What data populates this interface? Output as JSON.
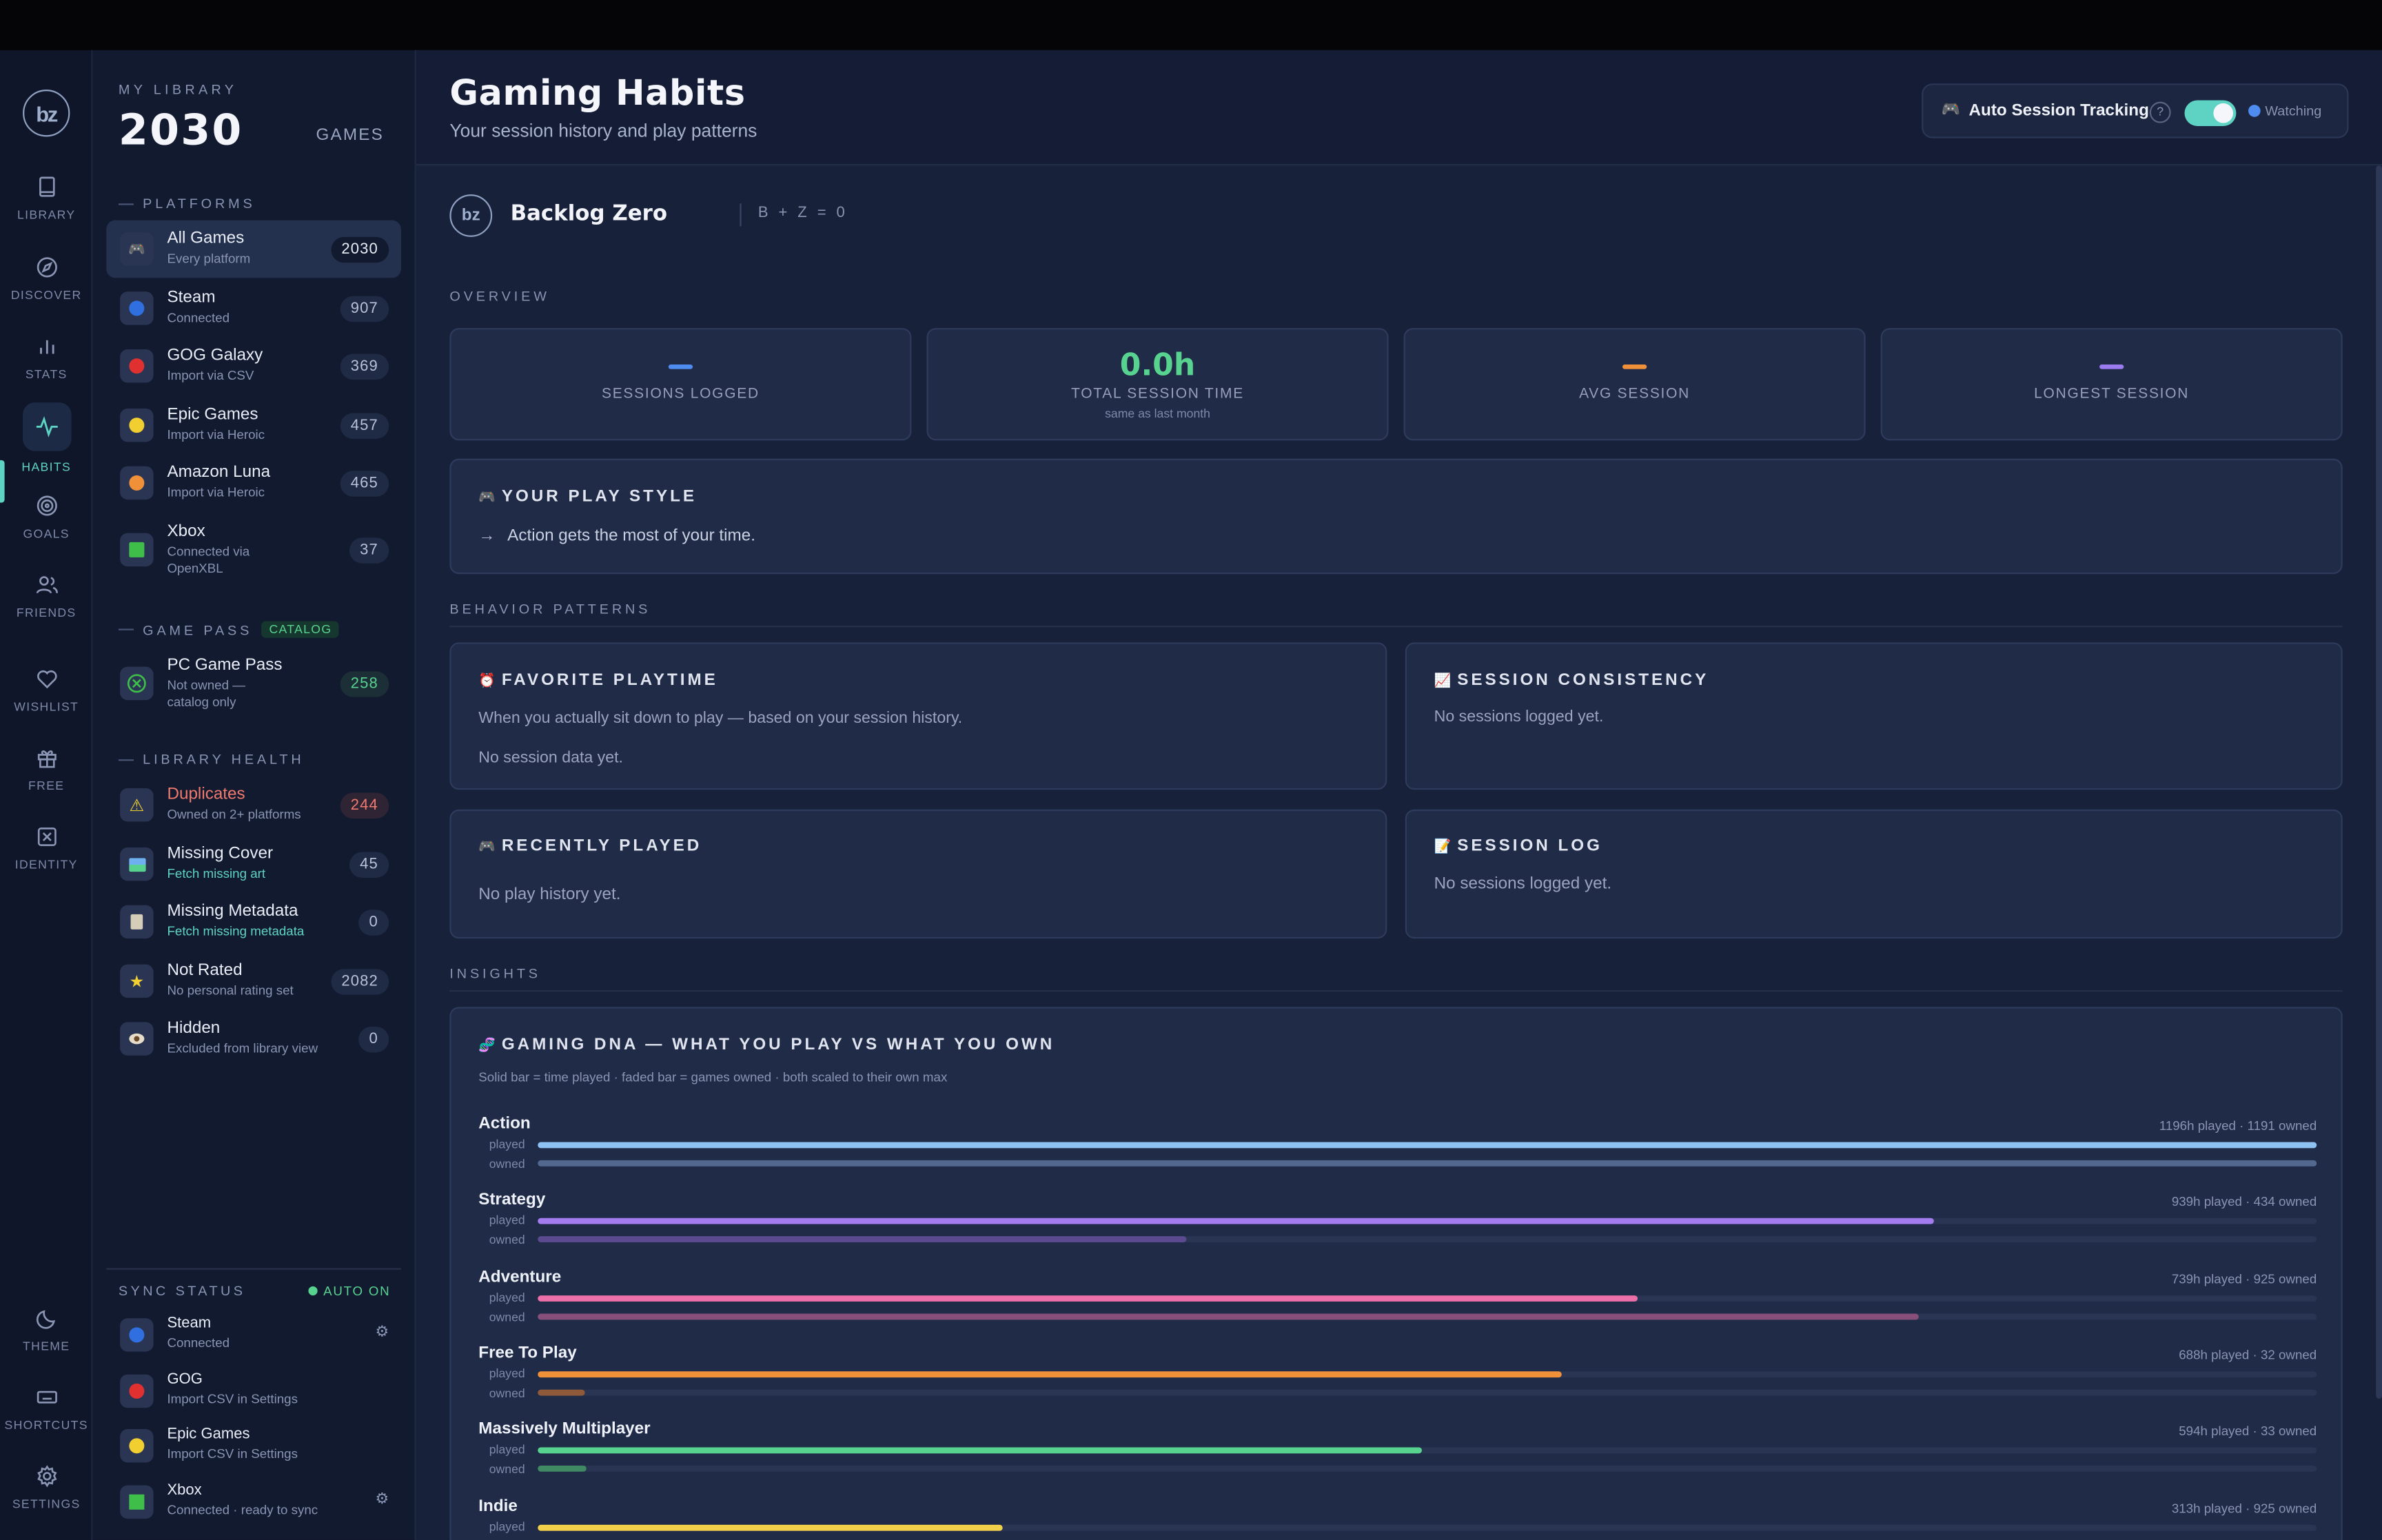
{
  "rail": {
    "logo": "bz",
    "items": [
      {
        "label": "LIBRARY"
      },
      {
        "label": "DISCOVER"
      },
      {
        "label": "STATS"
      },
      {
        "label": "HABITS"
      },
      {
        "label": "GOALS"
      },
      {
        "label": "FRIENDS"
      },
      {
        "label": "WISHLIST"
      },
      {
        "label": "FREE"
      },
      {
        "label": "IDENTITY"
      },
      {
        "label": "THEME"
      },
      {
        "label": "SHORTCUTS"
      },
      {
        "label": "SETTINGS"
      }
    ]
  },
  "library": {
    "kicker": "MY LIBRARY",
    "count": "2030",
    "unit": "GAMES",
    "platforms_head": "PLATFORMS",
    "platforms": [
      {
        "name": "All Games",
        "sub": "Every platform",
        "count": "2030"
      },
      {
        "name": "Steam",
        "sub": "Connected",
        "count": "907"
      },
      {
        "name": "GOG Galaxy",
        "sub": "Import via CSV",
        "count": "369"
      },
      {
        "name": "Epic Games",
        "sub": "Import via Heroic",
        "count": "457"
      },
      {
        "name": "Amazon Luna",
        "sub": "Import via Heroic",
        "count": "465"
      },
      {
        "name": "Xbox",
        "sub": "Connected via OpenXBL",
        "count": "37"
      }
    ],
    "gamepass_head": "GAME PASS",
    "gamepass_tag": "CATALOG",
    "gamepass": {
      "name": "PC Game Pass",
      "sub": "Not owned — catalog only",
      "count": "258"
    },
    "health_head": "LIBRARY HEALTH",
    "health": [
      {
        "name": "Duplicates",
        "sub": "Owned on 2+ platforms",
        "count": "244"
      },
      {
        "name": "Missing Cover",
        "sub": "Fetch missing art",
        "count": "45"
      },
      {
        "name": "Missing Metadata",
        "sub": "Fetch missing metadata",
        "count": "0"
      },
      {
        "name": "Not Rated",
        "sub": "No personal rating set",
        "count": "2082"
      },
      {
        "name": "Hidden",
        "sub": "Excluded from library view",
        "count": "0"
      }
    ],
    "sync_head": "SYNC STATUS",
    "sync_auto": "AUTO ON",
    "sync": [
      {
        "name": "Steam",
        "sub": "Connected"
      },
      {
        "name": "GOG",
        "sub": "Import CSV in Settings"
      },
      {
        "name": "Epic Games",
        "sub": "Import CSV in Settings"
      },
      {
        "name": "Xbox",
        "sub": "Connected · ready to sync"
      }
    ]
  },
  "header": {
    "title": "Gaming Habits",
    "subtitle": "Your session history and play patterns",
    "tracking_label": "Auto Session Tracking",
    "tracking_help": "?",
    "tracking_on": true,
    "tracking_status": "Watching"
  },
  "brand": {
    "name": "Backlog Zero",
    "logo": "bz",
    "equation": "B + Z = 0"
  },
  "overview": {
    "label": "OVERVIEW",
    "stats": [
      {
        "value": "",
        "caption": "SESSIONS LOGGED",
        "dash_color": "#4f8cf0"
      },
      {
        "value": "0.0h",
        "caption": "TOTAL SESSION TIME",
        "note": "same as last month"
      },
      {
        "value": "",
        "caption": "AVG SESSION",
        "dash_color": "#f0913a"
      },
      {
        "value": "",
        "caption": "LONGEST SESSION",
        "dash_color": "#9b7bf0"
      }
    ]
  },
  "playstyle": {
    "title": "YOUR PLAY STYLE",
    "arrow": "→",
    "text": "Action gets the most of your time."
  },
  "behavior": {
    "label": "BEHAVIOR PATTERNS",
    "favorite": {
      "title": "FAVORITE PLAYTIME",
      "desc": "When you actually sit down to play — based on your session history.",
      "empty": "No session data yet."
    },
    "consistency": {
      "title": "SESSION CONSISTENCY",
      "empty": "No sessions logged yet."
    },
    "recent": {
      "title": "RECENTLY PLAYED",
      "empty": "No play history yet."
    },
    "log": {
      "title": "SESSION LOG",
      "empty": "No sessions logged yet."
    }
  },
  "insights": {
    "label": "INSIGHTS",
    "dna_title": "GAMING DNA — WHAT YOU PLAY VS WHAT YOU OWN",
    "dna_sub": "Solid bar = time played · faded bar = games owned · both scaled to their own max",
    "played_label": "played",
    "owned_label": "owned"
  },
  "chart_data": {
    "type": "bar",
    "title": "GAMING DNA — WHAT YOU PLAY VS WHAT YOU OWN",
    "categories": [
      "Action",
      "Strategy",
      "Adventure",
      "Free To Play",
      "Massively Multiplayer",
      "Indie"
    ],
    "series": [
      {
        "name": "played",
        "unit": "h",
        "values": [
          1196,
          939,
          739,
          688,
          594,
          313
        ]
      },
      {
        "name": "owned",
        "values": [
          1191,
          434,
          925,
          32,
          33,
          925
        ]
      }
    ],
    "summaries": [
      "1196h played · 1191 owned",
      "939h played · 434 owned",
      "739h played · 925 owned",
      "688h played · 32 owned",
      "594h played · 33 owned",
      "313h played · 925 owned"
    ],
    "colors": [
      "#8ec2f2",
      "#a37cf0",
      "#ec6fa8",
      "#f0913a",
      "#58d38f",
      "#f2cf4a"
    ],
    "owned_colors": [
      "#53688f",
      "#5b4a8f",
      "#87507a",
      "#8f5a3a",
      "#3f8a62",
      "#8f7c3a"
    ]
  }
}
